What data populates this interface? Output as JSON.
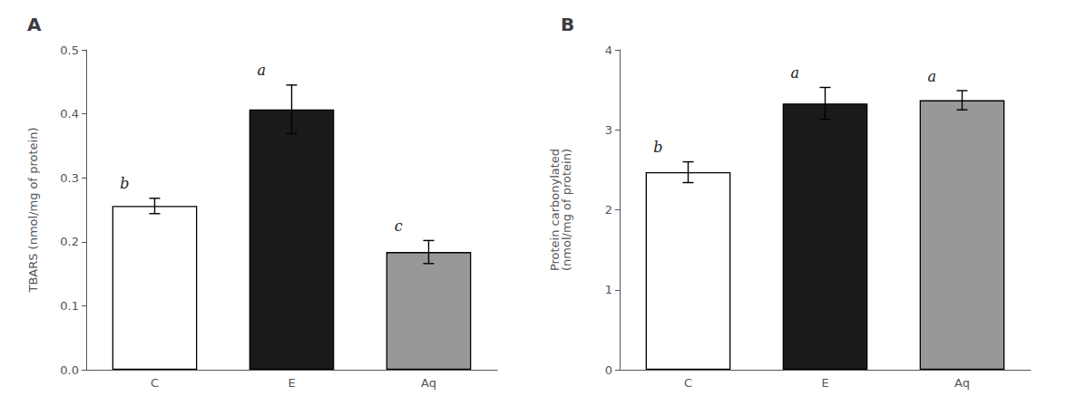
{
  "chart_data": [
    {
      "type": "bar",
      "title": "A",
      "categories": [
        "C",
        "E",
        "Aq"
      ],
      "values": [
        0.256,
        0.407,
        0.184
      ],
      "errors": [
        0.012,
        0.038,
        0.018
      ],
      "colors": [
        "#ffffff",
        "#1a1a1a",
        "#989898"
      ],
      "annotations": [
        "b",
        "a",
        "c"
      ],
      "ylabel": "TBARS (nmol/mg of protein)",
      "ylim": [
        0,
        0.5
      ],
      "yticks": [
        {
          "value": 0,
          "label": "0.0"
        },
        0.1,
        0.2,
        0.3,
        0.4,
        0.5
      ],
      "grid": false
    },
    {
      "type": "bar",
      "title": "B",
      "categories": [
        "C",
        "E",
        "Aq"
      ],
      "values": [
        2.47,
        3.33,
        3.37
      ],
      "errors": [
        0.13,
        0.2,
        0.12
      ],
      "colors": [
        "#ffffff",
        "#1a1a1a",
        "#989898"
      ],
      "annotations": [
        "b",
        "a",
        "a"
      ],
      "ylabel": "Protein carbonylated\n(nmol/mg of protein)",
      "ylim": [
        0,
        4
      ],
      "yticks": [
        0,
        1,
        2,
        3,
        4
      ],
      "grid": false
    }
  ]
}
